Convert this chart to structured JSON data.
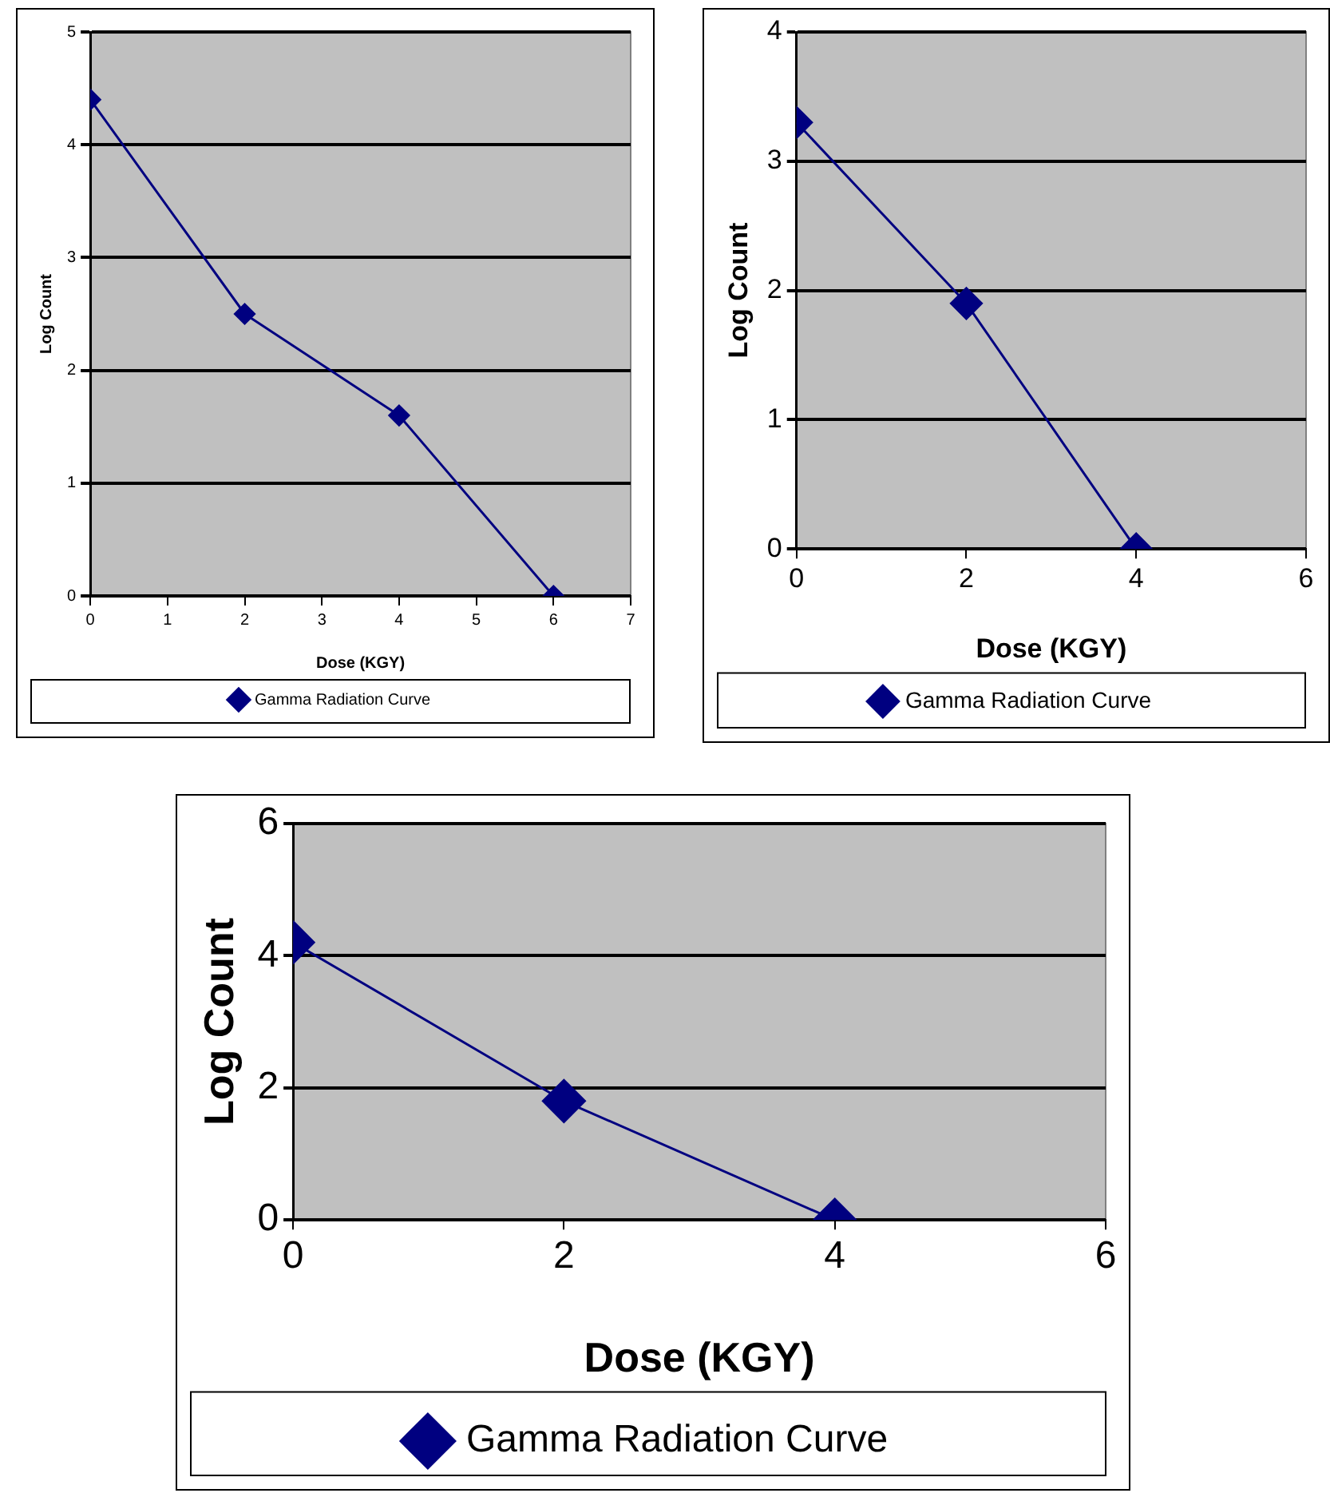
{
  "chart_data": [
    {
      "type": "line",
      "x": [
        0,
        2,
        4,
        6
      ],
      "series": [
        {
          "name": "Gamma Radiation Curve",
          "color": "#000080",
          "values": [
            4.4,
            2.5,
            1.6,
            0
          ]
        }
      ],
      "xlabel": "Dose (KGY)",
      "ylabel": "Log Count",
      "xlim": [
        0,
        7
      ],
      "xticks": [
        0,
        1,
        2,
        3,
        4,
        5,
        6,
        7
      ],
      "ylim": [
        0,
        5
      ],
      "yticks": [
        0,
        1,
        2,
        3,
        4,
        5
      ],
      "grid": "y",
      "legend": "bottom",
      "marker": "diamond"
    },
    {
      "type": "line",
      "x": [
        0,
        2,
        4
      ],
      "series": [
        {
          "name": "Gamma Radiation Curve",
          "color": "#000080",
          "values": [
            3.3,
            1.9,
            0
          ]
        }
      ],
      "xlabel": "Dose (KGY)",
      "ylabel": "Log Count",
      "xlim": [
        0,
        6
      ],
      "xticks": [
        0,
        2,
        4,
        6
      ],
      "ylim": [
        0,
        4
      ],
      "yticks": [
        0,
        1,
        2,
        3,
        4
      ],
      "grid": "y",
      "legend": "bottom",
      "marker": "diamond"
    },
    {
      "type": "line",
      "x": [
        0,
        2,
        4
      ],
      "series": [
        {
          "name": "Gamma Radiation Curve",
          "color": "#000080",
          "values": [
            4.2,
            1.8,
            0
          ]
        }
      ],
      "xlabel": "Dose (KGY)",
      "ylabel": "Log Count",
      "xlim": [
        0,
        6
      ],
      "xticks": [
        0,
        2,
        4,
        6
      ],
      "ylim": [
        0,
        6
      ],
      "yticks": [
        0,
        2,
        4,
        6
      ],
      "grid": "y",
      "legend": "bottom",
      "marker": "diamond"
    }
  ]
}
